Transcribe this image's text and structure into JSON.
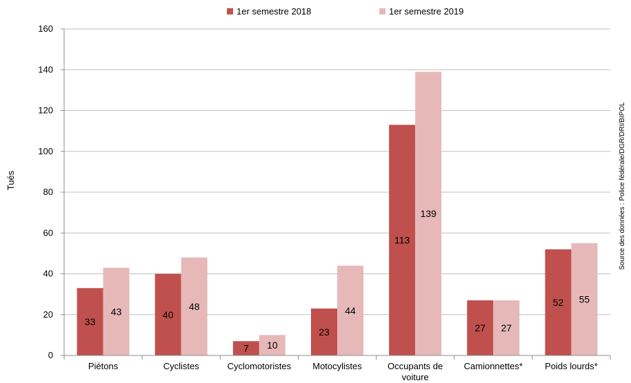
{
  "chart_data": {
    "type": "bar",
    "title": "",
    "xlabel": "",
    "ylabel": "Tués",
    "ylim": [
      0,
      160
    ],
    "yticks": [
      0,
      20,
      40,
      60,
      80,
      100,
      120,
      140,
      160
    ],
    "grid": true,
    "legend_position": "top-center",
    "categories": [
      [
        "Piétons"
      ],
      [
        "Cyclistes"
      ],
      [
        "Cyclomotoristes"
      ],
      [
        "Motocylistes"
      ],
      [
        "Occupants de",
        "voiture"
      ],
      [
        "Camionnettes*"
      ],
      [
        "Poids lourds*"
      ]
    ],
    "series": [
      {
        "name": "1er semestre 2018",
        "color": "#c0504d",
        "values": [
          33,
          40,
          7,
          23,
          113,
          27,
          52
        ]
      },
      {
        "name": "1er semestre 2019",
        "color": "#e6b9b8",
        "values": [
          43,
          48,
          10,
          44,
          139,
          27,
          55
        ]
      }
    ],
    "source_note": "Source des données : Police fédérale/DGR/DRI/BIPOL"
  }
}
